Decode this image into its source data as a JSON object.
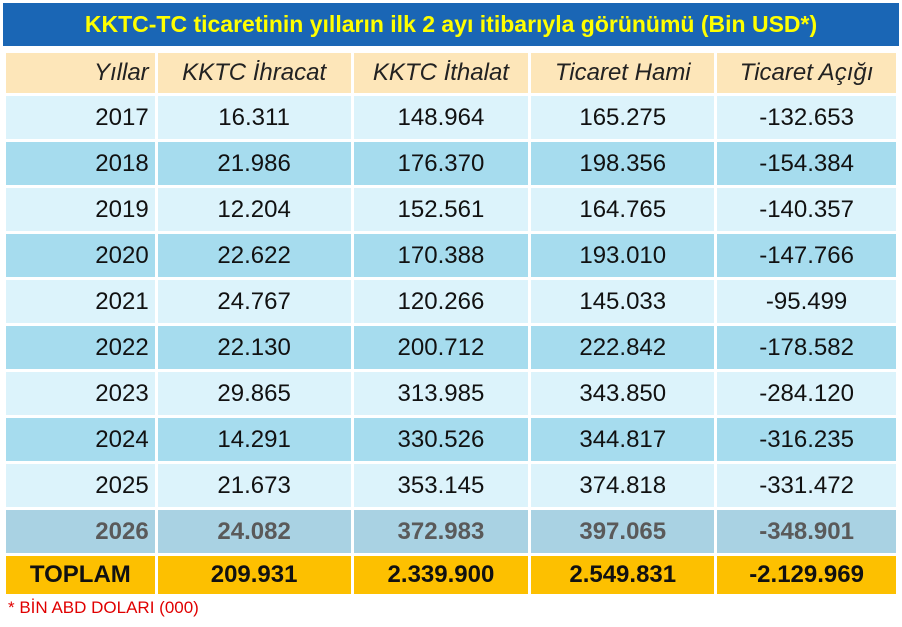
{
  "title": "KKTC-TC ticaretinin yılların ilk 2 ayı itibarıyla görünümü (Bin USD*)",
  "columns": [
    "Yıllar",
    "KKTC İhracat",
    "KKTC İthalat",
    "Ticaret Hami",
    "Ticaret Açığı"
  ],
  "rows": [
    [
      "2017",
      "16.311",
      "148.964",
      "165.275",
      "-132.653"
    ],
    [
      "2018",
      "21.986",
      "176.370",
      "198.356",
      "-154.384"
    ],
    [
      "2019",
      "12.204",
      "152.561",
      "164.765",
      "-140.357"
    ],
    [
      "2020",
      "22.622",
      "170.388",
      "193.010",
      "-147.766"
    ],
    [
      "2021",
      "24.767",
      "120.266",
      "145.033",
      "-95.499"
    ],
    [
      "2022",
      "22.130",
      "200.712",
      "222.842",
      "-178.582"
    ],
    [
      "2023",
      "29.865",
      "313.985",
      "343.850",
      "-284.120"
    ],
    [
      "2024",
      "14.291",
      "330.526",
      "344.817",
      "-316.235"
    ],
    [
      "2025",
      "21.673",
      "353.145",
      "374.818",
      "-331.472"
    ],
    [
      "2026",
      "24.082",
      "372.983",
      "397.065",
      "-348.901"
    ]
  ],
  "total": [
    "TOPLAM",
    "209.931",
    "2.339.900",
    "2.549.831",
    "-2.129.969"
  ],
  "footnote": "* BİN ABD DOLARI (000)",
  "colors": {
    "title_bg": "#1a66b5",
    "title_text": "#ffff00",
    "header_bg": "#fde6b9",
    "row_light": "#dcf3fb",
    "row_dark": "#a6dcee",
    "total_bg": "#fdc000",
    "footnote": "#e00000"
  }
}
